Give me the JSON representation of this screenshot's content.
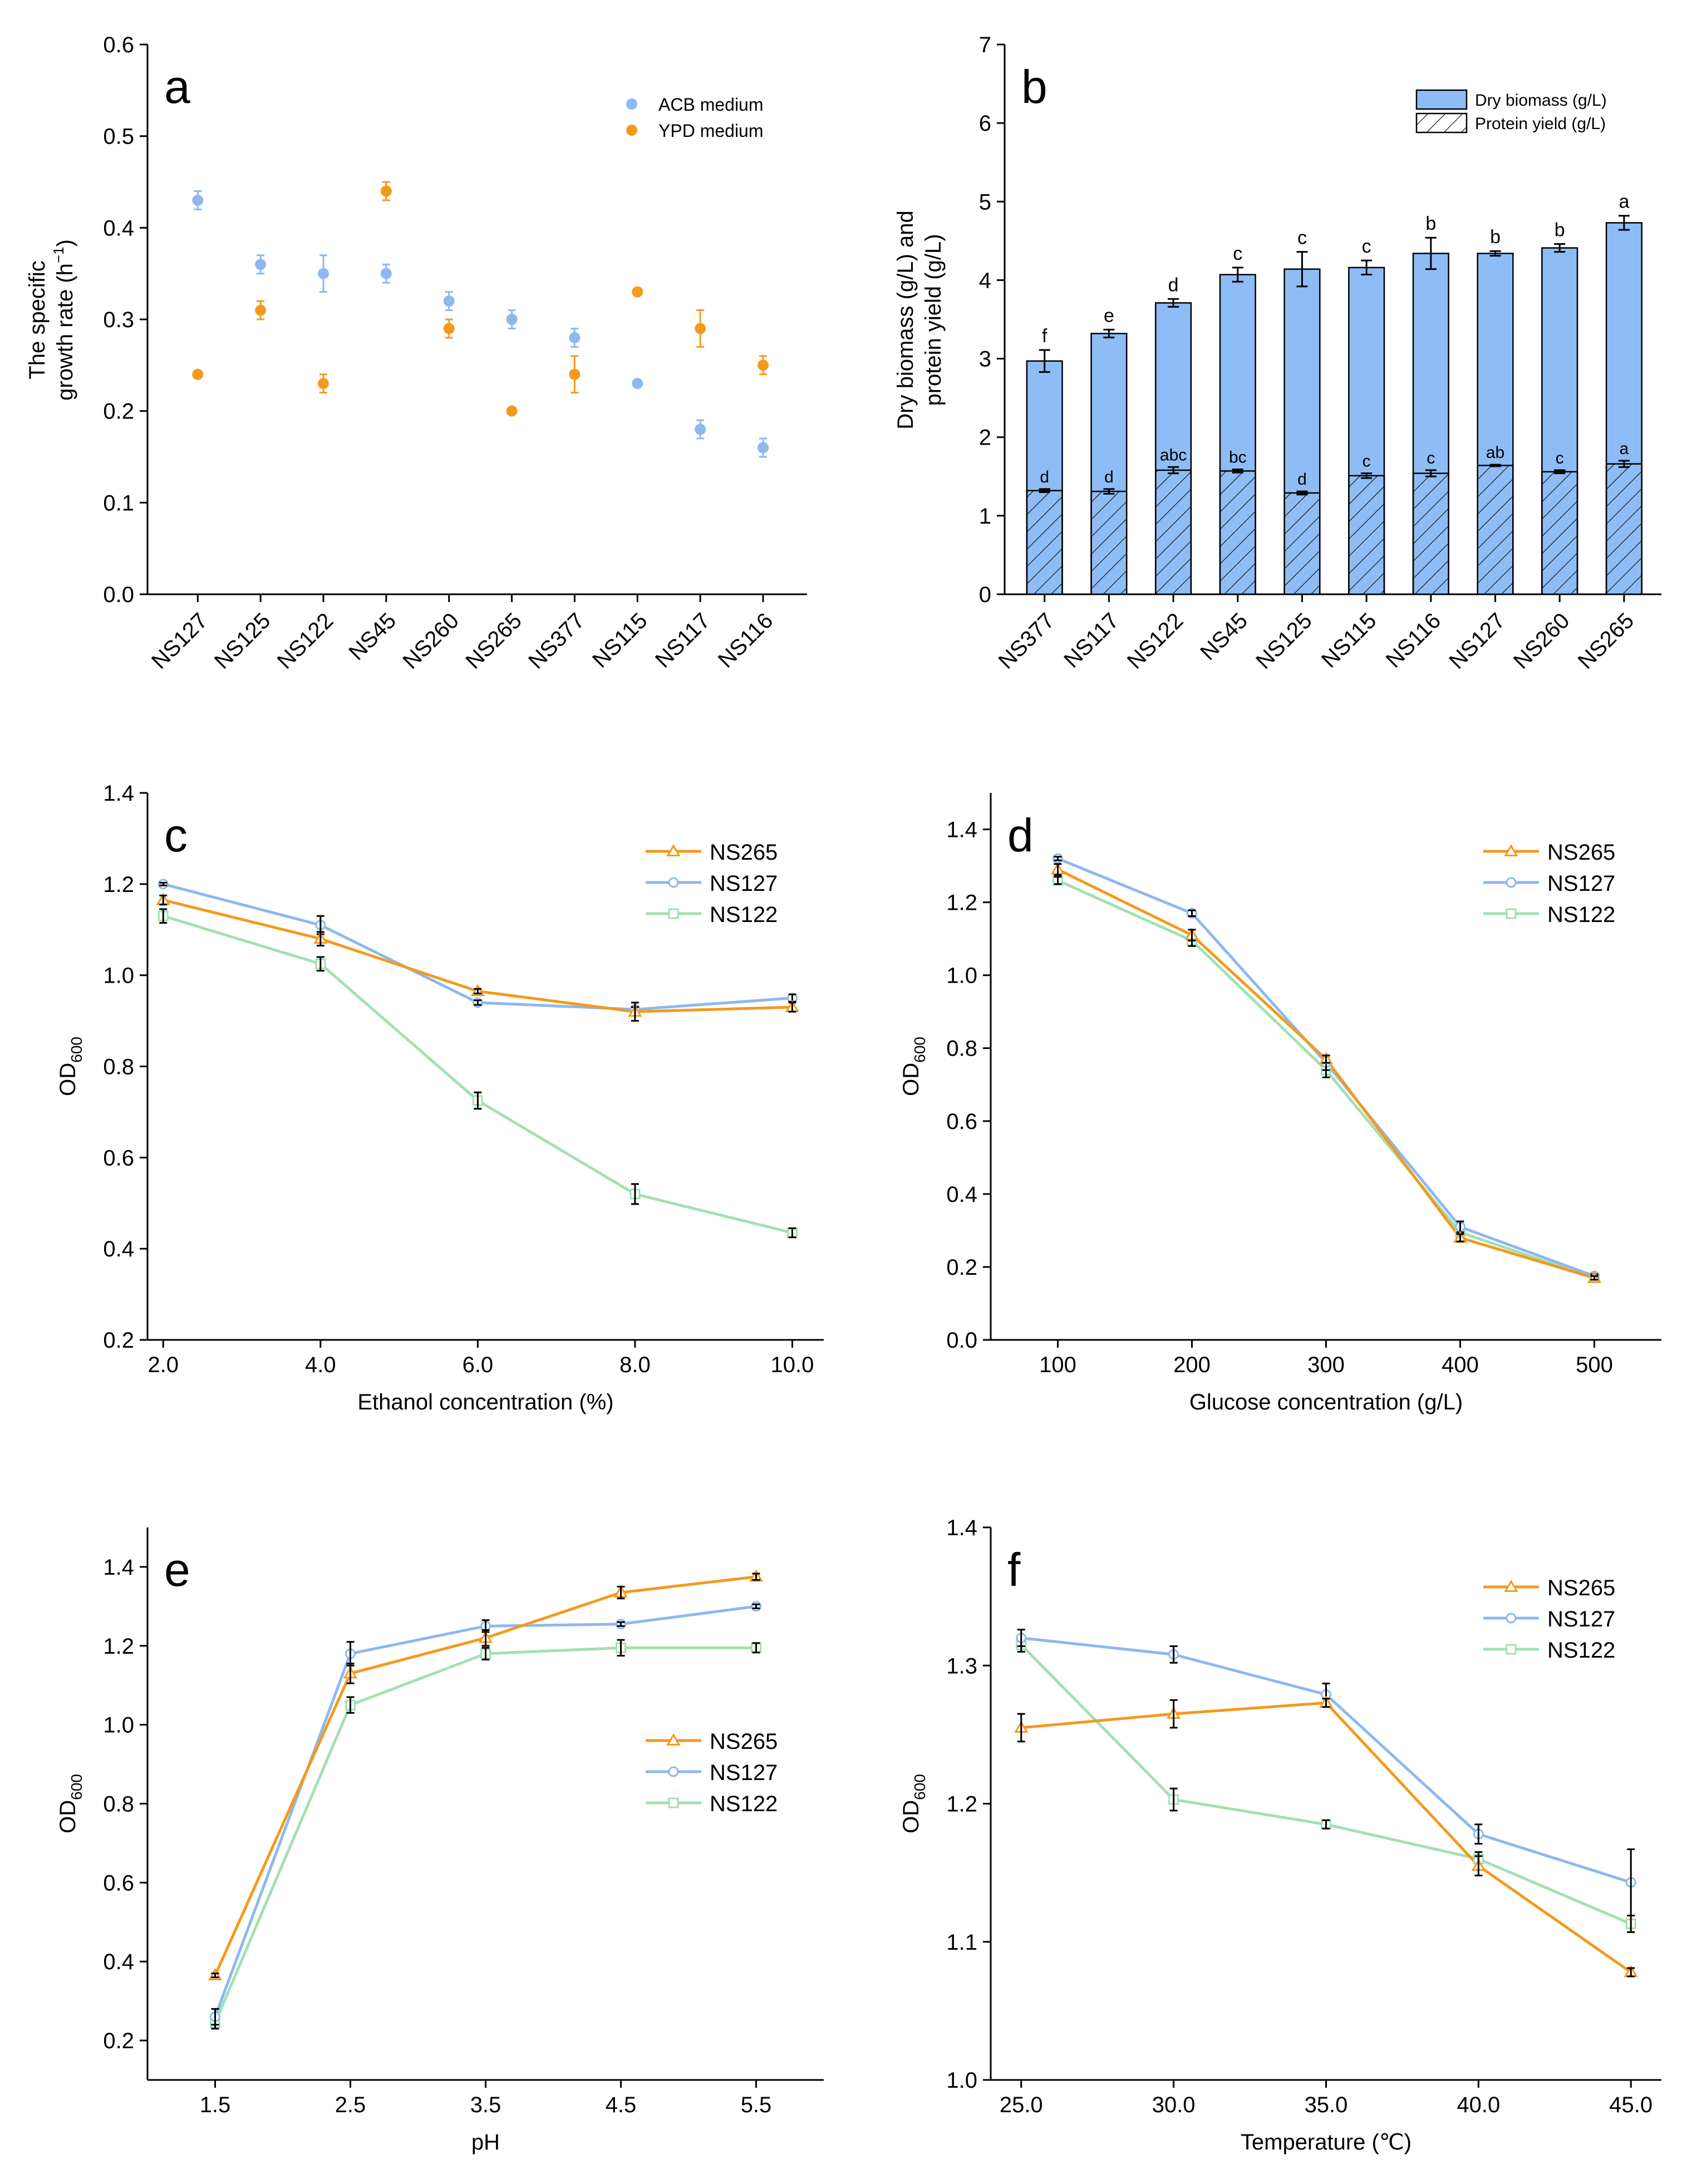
{
  "colors": {
    "acb": "#8db8f0",
    "ypd": "#f39a1c",
    "bar": "#8ebcf5",
    "ns265": "#f39a1c",
    "ns127": "#8db8f0",
    "ns122": "#a3e0b0"
  },
  "chart_data": [
    {
      "id": "a",
      "type": "scatter",
      "panel_label": "a",
      "xlabel": "",
      "ylabel_line1": "The specific",
      "ylabel_line2": "growth rate (h",
      "ylabel_sup": "−1",
      "ylabel_close": ")",
      "categories": [
        "NS127",
        "NS125",
        "NS122",
        "NS45",
        "NS260",
        "NS265",
        "NS377",
        "NS115",
        "NS117",
        "NS116"
      ],
      "ylim": [
        0,
        0.6
      ],
      "yticks": [
        0.0,
        0.1,
        0.2,
        0.3,
        0.4,
        0.5,
        0.6
      ],
      "ytick_labels": [
        "0.0",
        "0.1",
        "0.2",
        "0.3",
        "0.4",
        "0.5",
        "0.6"
      ],
      "legend": [
        "ACB medium",
        "YPD medium"
      ],
      "series": [
        {
          "name": "ACB medium",
          "values": [
            0.43,
            0.36,
            0.35,
            0.35,
            0.32,
            0.3,
            0.28,
            0.23,
            0.18,
            0.16
          ],
          "errors": [
            0.01,
            0.01,
            0.02,
            0.01,
            0.01,
            0.01,
            0.01,
            0.0,
            0.01,
            0.01
          ]
        },
        {
          "name": "YPD medium",
          "values": [
            0.24,
            0.31,
            0.23,
            0.44,
            0.29,
            0.2,
            0.24,
            0.33,
            0.29,
            0.25
          ],
          "errors": [
            0.0,
            0.01,
            0.01,
            0.01,
            0.01,
            0.0,
            0.02,
            0.0,
            0.02,
            0.01
          ]
        }
      ]
    },
    {
      "id": "b",
      "type": "bar",
      "panel_label": "b",
      "xlabel": "",
      "ylabel_line1": "Dry biomass (g/L) and",
      "ylabel_line2": "protein yield (g/L)",
      "categories": [
        "NS377",
        "NS117",
        "NS122",
        "NS45",
        "NS125",
        "NS115",
        "NS116",
        "NS127",
        "NS260",
        "NS265"
      ],
      "ylim": [
        0,
        7
      ],
      "yticks": [
        0,
        1,
        2,
        3,
        4,
        5,
        6,
        7
      ],
      "ytick_labels": [
        "0",
        "1",
        "2",
        "3",
        "4",
        "5",
        "6",
        "7"
      ],
      "legend": [
        "Dry biomass (g/L)",
        "Protein yield (g/L)"
      ],
      "series": [
        {
          "name": "Dry biomass (g/L)",
          "values": [
            2.97,
            3.32,
            3.71,
            4.07,
            4.14,
            4.16,
            4.34,
            4.34,
            4.41,
            4.73
          ],
          "errors": [
            0.14,
            0.05,
            0.05,
            0.09,
            0.22,
            0.09,
            0.2,
            0.03,
            0.05,
            0.09
          ],
          "letters": [
            "f",
            "e",
            "d",
            "c",
            "c",
            "c",
            "b",
            "b",
            "b",
            "a"
          ]
        },
        {
          "name": "Protein yield (g/L)",
          "values": [
            1.32,
            1.31,
            1.58,
            1.57,
            1.29,
            1.51,
            1.54,
            1.64,
            1.56,
            1.66
          ],
          "errors": [
            0.02,
            0.03,
            0.04,
            0.02,
            0.02,
            0.03,
            0.04,
            0.01,
            0.02,
            0.04
          ],
          "letters": [
            "d",
            "d",
            "abc",
            "bc",
            "d",
            "c",
            "c",
            "ab",
            "c",
            "a"
          ]
        }
      ]
    },
    {
      "id": "c",
      "type": "line",
      "panel_label": "c",
      "xlabel": "Ethanol concentration (%)",
      "ylabel": "OD",
      "ylabel_sub": "600",
      "x": [
        2.0,
        4.0,
        6.0,
        8.0,
        10.0
      ],
      "xtick_labels": [
        "2.0",
        "4.0",
        "6.0",
        "8.0",
        "10.0"
      ],
      "xlim": [
        1.8,
        10.4
      ],
      "ylim": [
        0.2,
        1.4
      ],
      "yticks": [
        0.2,
        0.4,
        0.6,
        0.8,
        1.0,
        1.2,
        1.4
      ],
      "ytick_labels": [
        "0.2",
        "0.4",
        "0.6",
        "0.8",
        "1.0",
        "1.2",
        "1.4"
      ],
      "legend_position": "top-right",
      "series": [
        {
          "name": "NS265",
          "values": [
            1.165,
            1.08,
            0.965,
            0.92,
            0.93
          ],
          "errors": [
            0.01,
            0.015,
            0.005,
            0.02,
            0.01
          ]
        },
        {
          "name": "NS127",
          "values": [
            1.2,
            1.11,
            0.94,
            0.925,
            0.95
          ],
          "errors": [
            0.003,
            0.02,
            0.005,
            0.005,
            0.008
          ]
        },
        {
          "name": "NS122",
          "values": [
            1.13,
            1.025,
            0.725,
            0.52,
            0.435
          ],
          "errors": [
            0.015,
            0.015,
            0.018,
            0.022,
            0.01
          ]
        }
      ]
    },
    {
      "id": "d",
      "type": "line",
      "panel_label": "d",
      "xlabel": "Glucose concentration (g/L)",
      "ylabel": "OD",
      "ylabel_sub": "600",
      "x": [
        100,
        200,
        300,
        400,
        500
      ],
      "xtick_labels": [
        "100",
        "200",
        "300",
        "400",
        "500"
      ],
      "xlim": [
        50,
        550
      ],
      "ylim": [
        0.0,
        1.5
      ],
      "yticks": [
        0.0,
        0.2,
        0.4,
        0.6,
        0.8,
        1.0,
        1.2,
        1.4
      ],
      "ytick_labels": [
        "0.0",
        "0.2",
        "0.4",
        "0.6",
        "0.8",
        "1.0",
        "1.2",
        "1.4"
      ],
      "legend_position": "top-right",
      "series": [
        {
          "name": "NS265",
          "values": [
            1.29,
            1.11,
            0.77,
            0.28,
            0.17
          ],
          "errors": [
            0.015,
            0.015,
            0.01,
            0.01,
            0.005
          ]
        },
        {
          "name": "NS127",
          "values": [
            1.32,
            1.17,
            0.76,
            0.31,
            0.175
          ],
          "errors": [
            0.005,
            0.008,
            0.02,
            0.015,
            0.005
          ]
        },
        {
          "name": "NS122",
          "values": [
            1.26,
            1.095,
            0.74,
            0.295,
            0.17
          ],
          "errors": [
            0.01,
            0.015,
            0.02,
            0.015,
            0.005
          ]
        }
      ]
    },
    {
      "id": "e",
      "type": "line",
      "panel_label": "e",
      "xlabel": "pH",
      "ylabel": "OD",
      "ylabel_sub": "600",
      "x": [
        1.5,
        2.5,
        3.5,
        4.5,
        5.5
      ],
      "xtick_labels": [
        "1.5",
        "2.5",
        "3.5",
        "4.5",
        "5.5"
      ],
      "xlim": [
        1.0,
        6.0
      ],
      "ylim": [
        0.1,
        1.5
      ],
      "yticks": [
        0.2,
        0.4,
        0.6,
        0.8,
        1.0,
        1.2,
        1.4
      ],
      "ytick_labels": [
        "0.2",
        "0.4",
        "0.6",
        "0.8",
        "1.0",
        "1.2",
        "1.4"
      ],
      "legend_position": "middle-right",
      "series": [
        {
          "name": "NS265",
          "values": [
            0.365,
            1.13,
            1.22,
            1.335,
            1.375
          ],
          "errors": [
            0.005,
            0.025,
            0.02,
            0.015,
            0.008
          ]
        },
        {
          "name": "NS127",
          "values": [
            0.26,
            1.18,
            1.25,
            1.255,
            1.3
          ],
          "errors": [
            0.02,
            0.03,
            0.015,
            0.005,
            0.005
          ]
        },
        {
          "name": "NS122",
          "values": [
            0.245,
            1.05,
            1.18,
            1.195,
            1.195
          ],
          "errors": [
            0.015,
            0.02,
            0.015,
            0.02,
            0.012
          ]
        }
      ]
    },
    {
      "id": "f",
      "type": "line",
      "panel_label": "f",
      "xlabel": "Temperature (℃)",
      "ylabel": "OD",
      "ylabel_sub": "600",
      "x": [
        25.0,
        30.0,
        35.0,
        40.0,
        45.0
      ],
      "xtick_labels": [
        "25.0",
        "30.0",
        "35.0",
        "40.0",
        "45.0"
      ],
      "xlim": [
        24.0,
        46.0
      ],
      "ylim": [
        1.0,
        1.4
      ],
      "yticks": [
        1.0,
        1.1,
        1.2,
        1.3,
        1.4
      ],
      "ytick_labels": [
        "1.0",
        "1.1",
        "1.2",
        "1.3",
        "1.4"
      ],
      "legend_position": "top-right",
      "series": [
        {
          "name": "NS265",
          "values": [
            1.255,
            1.265,
            1.273,
            1.155,
            1.078
          ],
          "errors": [
            0.01,
            0.01,
            0.003,
            0.007,
            0.003
          ]
        },
        {
          "name": "NS127",
          "values": [
            1.32,
            1.308,
            1.279,
            1.178,
            1.143
          ],
          "errors": [
            0.006,
            0.006,
            0.008,
            0.007,
            0.024
          ]
        },
        {
          "name": "NS122",
          "values": [
            1.315,
            1.203,
            1.185,
            1.16,
            1.113
          ],
          "errors": [
            0.005,
            0.008,
            0.003,
            0.005,
            0.006
          ]
        }
      ]
    }
  ]
}
